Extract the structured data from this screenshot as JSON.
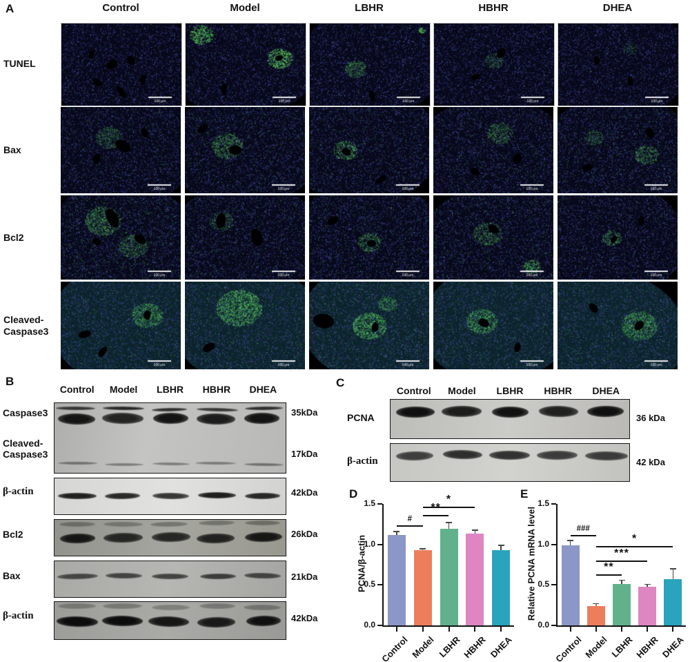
{
  "panel_a": {
    "label": "A",
    "columns": [
      "Control",
      "Model",
      "LBHR",
      "HBHR",
      "DHEA"
    ],
    "rows": [
      "TUNEL",
      "Bax",
      "Bcl2",
      "Cleaved-Caspase3"
    ],
    "scale_bar_label": "100 μm"
  },
  "panel_b": {
    "label": "B",
    "columns": [
      "Control",
      "Model",
      "LBHR",
      "HBHR",
      "DHEA"
    ],
    "rows": [
      {
        "label": "Caspase3",
        "kda": "35kDa"
      },
      {
        "label": "Cleaved-Caspase3",
        "kda": "17kDa"
      },
      {
        "label": "β-actin",
        "kda": "42kDa"
      },
      {
        "label": "Bcl2",
        "kda": "26kDa"
      },
      {
        "label": "Bax",
        "kda": "21kDa"
      },
      {
        "label": "β-actin",
        "kda": "42kDa"
      }
    ]
  },
  "panel_c": {
    "label": "C",
    "columns": [
      "Control",
      "Model",
      "LBHR",
      "HBHR",
      "DHEA"
    ],
    "rows": [
      {
        "label": "PCNA",
        "kda": "36 kDa"
      },
      {
        "label": "β-actin",
        "kda": "42 kDa"
      }
    ]
  },
  "panel_d": {
    "label": "D"
  },
  "panel_e": {
    "label": "E"
  },
  "chart_data": [
    {
      "panel": "D",
      "type": "bar",
      "title": "",
      "ylabel": "PCNA/β-actin",
      "xlabel": "",
      "categories": [
        "Control",
        "Model",
        "LBHR",
        "HBHR",
        "DHEA"
      ],
      "values": [
        1.12,
        0.93,
        1.19,
        1.13,
        0.93
      ],
      "errors": [
        0.04,
        0.02,
        0.08,
        0.05,
        0.06
      ],
      "bar_colors": [
        "#8b97c6",
        "#ec7e5c",
        "#62b18d",
        "#dd86c1",
        "#2aa3bd"
      ],
      "ylim": [
        0,
        1.5
      ],
      "yticks": [
        "0.0",
        "0.5",
        "1.0",
        "1.5"
      ],
      "grid": false,
      "legend": false,
      "significance": [
        {
          "x1": 0,
          "x2": 1,
          "label": "#",
          "y": 1.24
        },
        {
          "x1": 1,
          "x2": 2,
          "label": "**",
          "y": 1.36
        },
        {
          "x1": 1,
          "x2": 3,
          "label": "*",
          "y": 1.47
        }
      ]
    },
    {
      "panel": "E",
      "type": "bar",
      "title": "",
      "ylabel": "Relative PCNA mRNA level",
      "xlabel": "",
      "categories": [
        "Control",
        "Model",
        "LBHR",
        "HBHR",
        "DHEA"
      ],
      "values": [
        0.99,
        0.24,
        0.51,
        0.48,
        0.57
      ],
      "errors": [
        0.06,
        0.03,
        0.05,
        0.03,
        0.13
      ],
      "bar_colors": [
        "#8b97c6",
        "#ec7e5c",
        "#62b18d",
        "#dd86c1",
        "#2aa3bd"
      ],
      "ylim": [
        0,
        1.5
      ],
      "yticks": [
        "0.0",
        "0.5",
        "1.0",
        "1.5"
      ],
      "grid": false,
      "legend": false,
      "significance": [
        {
          "x1": 0,
          "x2": 1,
          "label": "###",
          "y": 1.12
        },
        {
          "x1": 1,
          "x2": 2,
          "label": "**",
          "y": 0.63
        },
        {
          "x1": 1,
          "x2": 3,
          "label": "***",
          "y": 0.8
        },
        {
          "x1": 1,
          "x2": 4,
          "label": "*",
          "y": 0.98
        }
      ]
    }
  ]
}
